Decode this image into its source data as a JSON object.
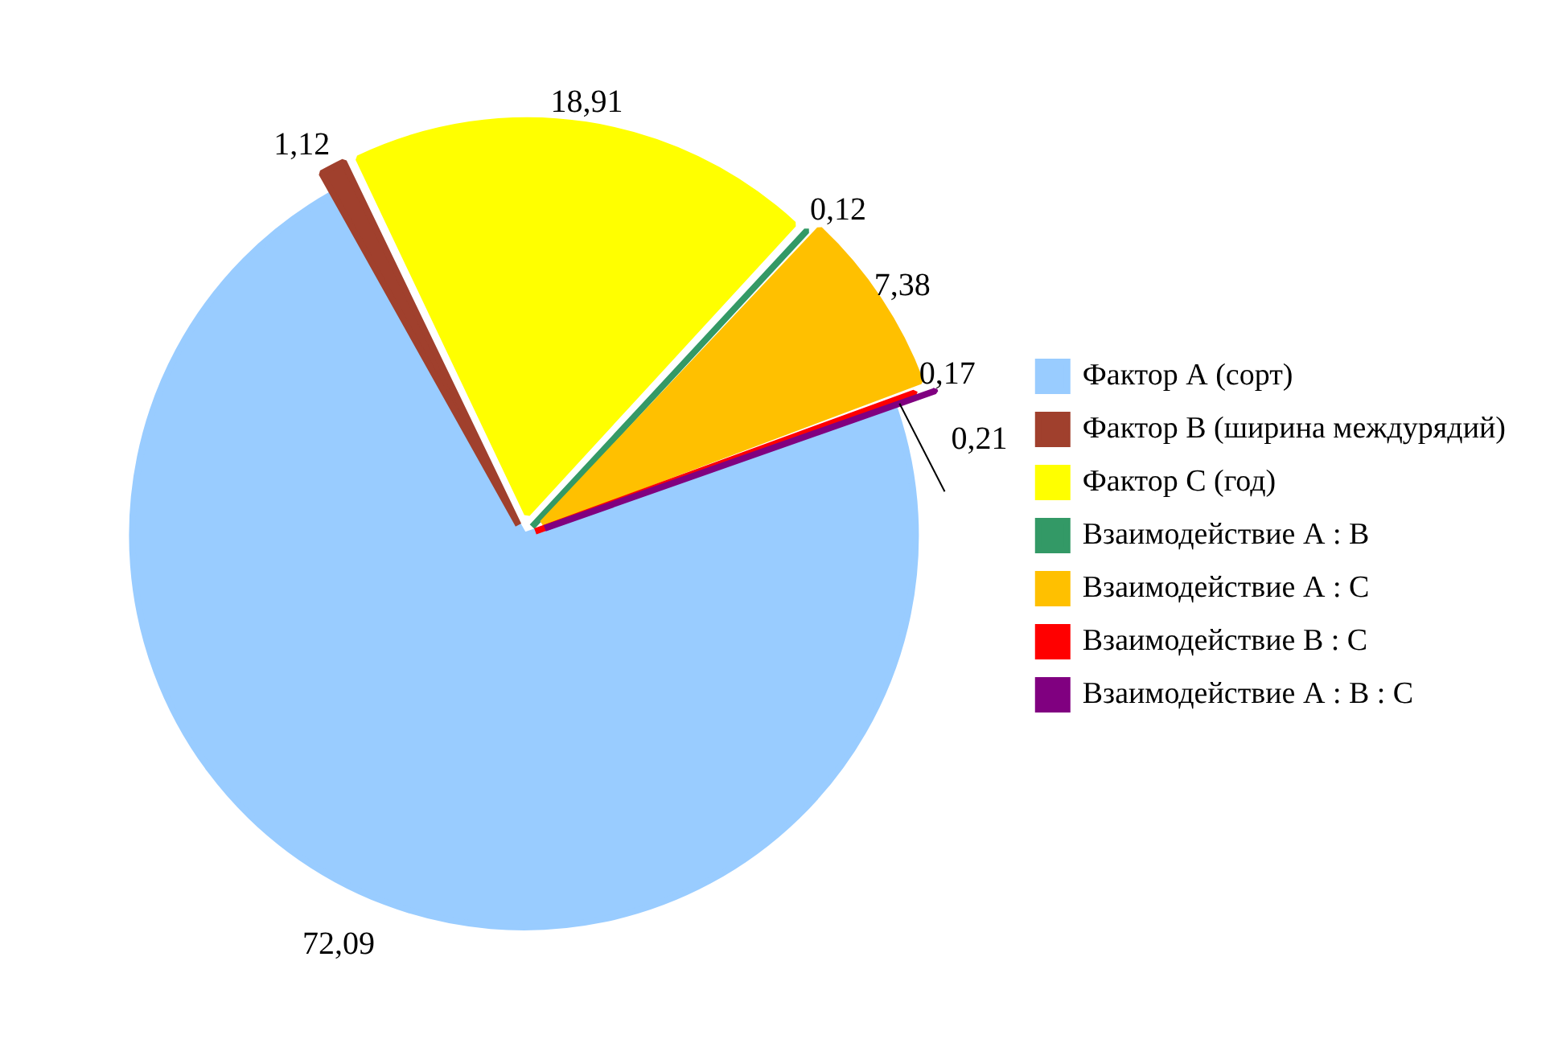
{
  "chart_data": {
    "type": "pie",
    "categories": [
      "Фактор А (сорт)",
      "Фактор В (ширина междурядий)",
      "Фактор С (год)",
      "Взаимодействие А : В",
      "Взаимодействие А : С",
      "Взаимодействие В : С",
      "Взаимодействие А : В : С"
    ],
    "values": [
      72.09,
      1.12,
      18.91,
      0.12,
      7.38,
      0.17,
      0.21
    ],
    "colors": [
      "#99ccff",
      "#a0402d",
      "#ffff00",
      "#339966",
      "#ffc000",
      "#ff0000",
      "#800080"
    ],
    "value_labels": [
      "72,09",
      "1,12",
      "18,91",
      "0,12",
      "7,38",
      "0,17",
      "0,21"
    ],
    "legend": "right"
  }
}
